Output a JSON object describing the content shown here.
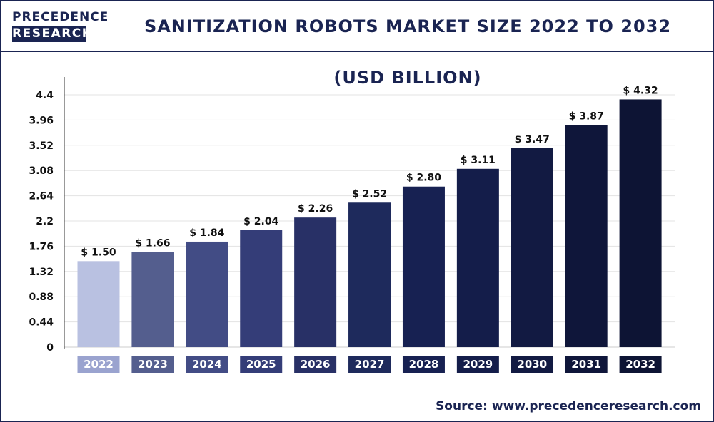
{
  "header": {
    "logo_top": "PRECEDENCE",
    "logo_bottom": "RESEARCH",
    "title": "SANITIZATION ROBOTS MARKET SIZE 2022 TO 2032 (USD BILLION)"
  },
  "source": {
    "label": "Source:",
    "url": "www.precedenceresearch.com"
  },
  "colors": {
    "brand": "#1a2452",
    "bars": [
      "#b9c1e1",
      "#545e8e",
      "#424c85",
      "#343d78",
      "#283066",
      "#1e2a5c",
      "#172152",
      "#141d4a",
      "#121a42",
      "#0f163a",
      "#0d1434"
    ],
    "category_box": [
      "#9aa3cf",
      "#545e8e",
      "#424c85",
      "#343d78",
      "#283066",
      "#1e2a5c",
      "#172152",
      "#141d4a",
      "#121a42",
      "#0f163a",
      "#0d1434"
    ]
  },
  "chart_data": {
    "type": "bar",
    "title": "SANITIZATION ROBOTS MARKET SIZE 2022 TO 2032 (USD BILLION)",
    "categories": [
      "2022",
      "2023",
      "2024",
      "2025",
      "2026",
      "2027",
      "2028",
      "2029",
      "2030",
      "2031",
      "2032"
    ],
    "values": [
      1.5,
      1.66,
      1.84,
      2.04,
      2.26,
      2.52,
      2.8,
      3.11,
      3.47,
      3.87,
      4.32
    ],
    "value_labels": [
      "$ 1.50",
      "$ 1.66",
      "$ 1.84",
      "$ 2.04",
      "$ 2.26",
      "$ 2.52",
      "$ 2.80",
      "$ 3.11",
      "$ 3.47",
      "$ 3.87",
      "$ 4.32"
    ],
    "yticks": [
      "0",
      "0.44",
      "0.88",
      "1.32",
      "1.76",
      "2.2",
      "2.64",
      "3.08",
      "3.52",
      "3.96",
      "4.4"
    ],
    "ylim": [
      0,
      4.4
    ],
    "grid": true,
    "xlabel": "",
    "ylabel": ""
  }
}
